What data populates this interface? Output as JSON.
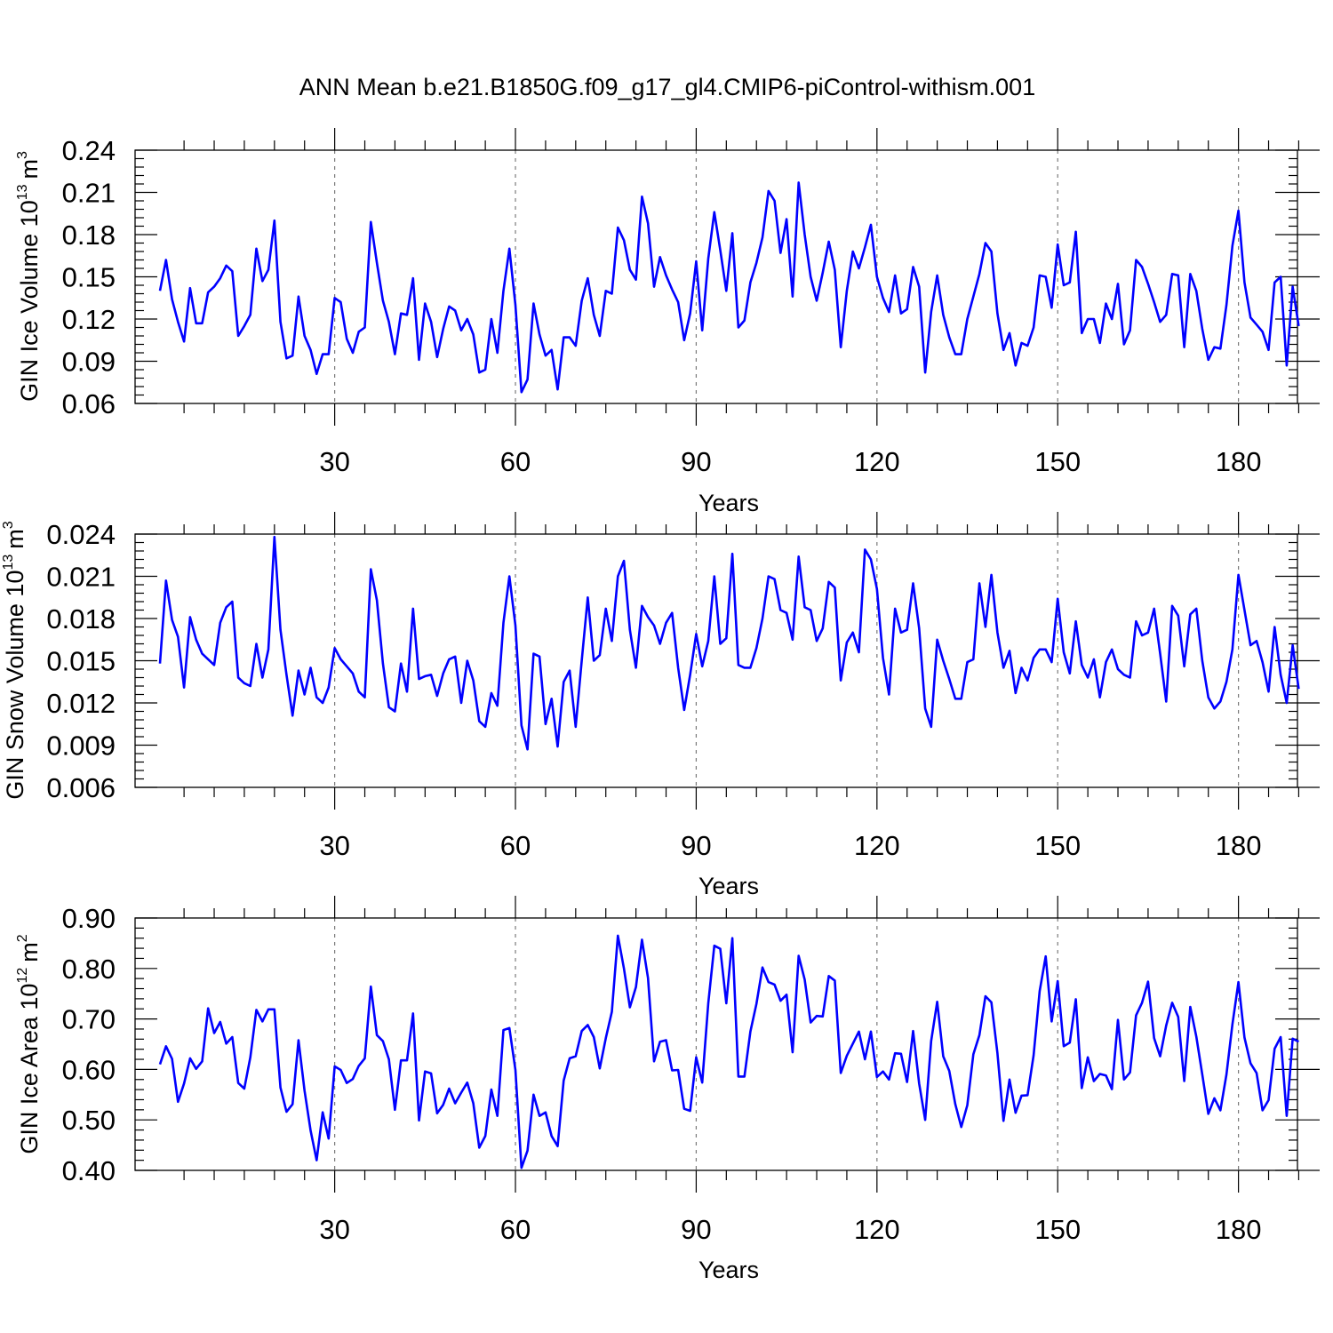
{
  "title": "ANN Mean b.e21.B1850G.f09_g17_gl4.CMIP6-piControl-withism.001",
  "colors": {
    "line": "#0000ff",
    "grid": "#7a7a7a",
    "axes": "#000000"
  },
  "chart_data": [
    {
      "type": "line",
      "ylabel": "GIN Ice Volume",
      "ylabel_unit_base": "10",
      "ylabel_unit_exp": "13",
      "ylabel_unit_var": "m",
      "ylabel_unit_var_exp": "3",
      "xlabel": "Years",
      "xlim": [
        1,
        190
      ],
      "ylim": [
        0.06,
        0.24
      ],
      "yticks": [
        0.06,
        0.09,
        0.12,
        0.15,
        0.18,
        0.21,
        0.24
      ],
      "ytick_labels": [
        "0.06",
        "0.09",
        "0.12",
        "0.15",
        "0.18",
        "0.21",
        "0.24"
      ],
      "xticks": [
        30,
        60,
        90,
        120,
        150,
        180
      ],
      "xtick_labels": [
        "30",
        "60",
        "90",
        "120",
        "150",
        "180"
      ],
      "grid": "vertical dashed at major x ticks",
      "series": [
        {
          "values": [
            0.14,
            0.162,
            0.134,
            0.118,
            0.104,
            0.142,
            0.117,
            0.117,
            0.139,
            0.143,
            0.149,
            0.158,
            0.154,
            0.108,
            0.115,
            0.123,
            0.17,
            0.147,
            0.155,
            0.19,
            0.118,
            0.092,
            0.094,
            0.136,
            0.108,
            0.098,
            0.081,
            0.095,
            0.095,
            0.135,
            0.132,
            0.106,
            0.096,
            0.111,
            0.114,
            0.189,
            0.16,
            0.133,
            0.118,
            0.095,
            0.124,
            0.123,
            0.149,
            0.091,
            0.131,
            0.118,
            0.093,
            0.113,
            0.129,
            0.126,
            0.112,
            0.12,
            0.109,
            0.082,
            0.084,
            0.12,
            0.096,
            0.14,
            0.17,
            0.13,
            0.068,
            0.077,
            0.131,
            0.109,
            0.094,
            0.098,
            0.07,
            0.107,
            0.107,
            0.101,
            0.133,
            0.149,
            0.123,
            0.108,
            0.14,
            0.138,
            0.185,
            0.176,
            0.155,
            0.148,
            0.207,
            0.188,
            0.143,
            0.164,
            0.151,
            0.141,
            0.132,
            0.105,
            0.124,
            0.161,
            0.112,
            0.163,
            0.196,
            0.169,
            0.14,
            0.181,
            0.114,
            0.119,
            0.146,
            0.16,
            0.178,
            0.211,
            0.204,
            0.167,
            0.191,
            0.136,
            0.217,
            0.18,
            0.15,
            0.133,
            0.153,
            0.175,
            0.155,
            0.1,
            0.14,
            0.168,
            0.156,
            0.171,
            0.187,
            0.15,
            0.135,
            0.125,
            0.151,
            0.124,
            0.127,
            0.157,
            0.143,
            0.082,
            0.125,
            0.151,
            0.123,
            0.107,
            0.095,
            0.095,
            0.12,
            0.136,
            0.152,
            0.174,
            0.168,
            0.124,
            0.098,
            0.11,
            0.087,
            0.103,
            0.101,
            0.114,
            0.151,
            0.15,
            0.128,
            0.173,
            0.144,
            0.146,
            0.182,
            0.11,
            0.12,
            0.12,
            0.103,
            0.131,
            0.12,
            0.145,
            0.102,
            0.112,
            0.162,
            0.157,
            0.145,
            0.132,
            0.118,
            0.123,
            0.152,
            0.151,
            0.1,
            0.152,
            0.14,
            0.113,
            0.091,
            0.1,
            0.099,
            0.13,
            0.172,
            0.197,
            0.146,
            0.121,
            0.116,
            0.111,
            0.098,
            0.146,
            0.15,
            0.087,
            0.143,
            0.115
          ]
        }
      ]
    },
    {
      "type": "line",
      "ylabel": "GIN Snow Volume",
      "ylabel_unit_base": "10",
      "ylabel_unit_exp": "13",
      "ylabel_unit_var": "m",
      "ylabel_unit_var_exp": "3",
      "xlabel": "Years",
      "xlim": [
        1,
        190
      ],
      "ylim": [
        0.006,
        0.024
      ],
      "yticks": [
        0.006,
        0.009,
        0.012,
        0.015,
        0.018,
        0.021,
        0.024
      ],
      "ytick_labels": [
        "0.006",
        "0.009",
        "0.012",
        "0.015",
        "0.018",
        "0.021",
        "0.024"
      ],
      "xticks": [
        30,
        60,
        90,
        120,
        150,
        180
      ],
      "xtick_labels": [
        "30",
        "60",
        "90",
        "120",
        "150",
        "180"
      ],
      "grid": "vertical dashed at major x ticks",
      "series": [
        {
          "values": [
            0.0148,
            0.0207,
            0.0179,
            0.0167,
            0.0131,
            0.0181,
            0.0165,
            0.0155,
            0.0151,
            0.0147,
            0.0177,
            0.0188,
            0.0192,
            0.0138,
            0.0134,
            0.0132,
            0.0162,
            0.0138,
            0.0158,
            0.0238,
            0.0172,
            0.014,
            0.0111,
            0.0143,
            0.0126,
            0.0145,
            0.0124,
            0.012,
            0.0131,
            0.0159,
            0.0151,
            0.0146,
            0.0141,
            0.0128,
            0.0124,
            0.0215,
            0.0193,
            0.0148,
            0.0117,
            0.0114,
            0.0148,
            0.0128,
            0.0187,
            0.0137,
            0.0139,
            0.014,
            0.0125,
            0.0141,
            0.0151,
            0.0153,
            0.012,
            0.015,
            0.0136,
            0.0107,
            0.0103,
            0.0127,
            0.0118,
            0.0177,
            0.021,
            0.0175,
            0.0104,
            0.0087,
            0.0155,
            0.0153,
            0.0105,
            0.0123,
            0.0089,
            0.0135,
            0.0143,
            0.0103,
            0.015,
            0.0195,
            0.015,
            0.0154,
            0.0187,
            0.0164,
            0.021,
            0.0221,
            0.0172,
            0.0145,
            0.0189,
            0.0181,
            0.0175,
            0.0162,
            0.0177,
            0.0184,
            0.0145,
            0.0115,
            0.014,
            0.0169,
            0.0146,
            0.0164,
            0.021,
            0.0162,
            0.0166,
            0.0226,
            0.0147,
            0.0145,
            0.0145,
            0.0159,
            0.018,
            0.021,
            0.0208,
            0.0186,
            0.0184,
            0.0165,
            0.0224,
            0.0188,
            0.0186,
            0.0164,
            0.0173,
            0.0206,
            0.0202,
            0.0136,
            0.0163,
            0.017,
            0.0156,
            0.0229,
            0.0222,
            0.0201,
            0.0152,
            0.0126,
            0.0187,
            0.017,
            0.0172,
            0.0205,
            0.0173,
            0.0116,
            0.0103,
            0.0165,
            0.015,
            0.0137,
            0.0123,
            0.0123,
            0.0149,
            0.0151,
            0.0205,
            0.0174,
            0.0211,
            0.017,
            0.0145,
            0.0157,
            0.0127,
            0.0145,
            0.0136,
            0.0152,
            0.0158,
            0.0158,
            0.0149,
            0.0194,
            0.0156,
            0.0141,
            0.0178,
            0.0147,
            0.0138,
            0.0151,
            0.0124,
            0.0149,
            0.0158,
            0.0144,
            0.014,
            0.0138,
            0.0178,
            0.0168,
            0.017,
            0.0187,
            0.0155,
            0.0121,
            0.0189,
            0.0182,
            0.0146,
            0.0183,
            0.0187,
            0.015,
            0.0124,
            0.0116,
            0.0121,
            0.0135,
            0.0158,
            0.0211,
            0.0186,
            0.0161,
            0.0164,
            0.0149,
            0.0128,
            0.0174,
            0.014,
            0.012,
            0.0161,
            0.013
          ]
        }
      ]
    },
    {
      "type": "line",
      "ylabel": "GIN Ice Area",
      "ylabel_unit_base": "10",
      "ylabel_unit_exp": "12",
      "ylabel_unit_var": "m",
      "ylabel_unit_var_exp": "2",
      "xlabel": "Years",
      "xlim": [
        1,
        190
      ],
      "ylim": [
        0.4,
        0.9
      ],
      "yticks": [
        0.4,
        0.5,
        0.6,
        0.7,
        0.8,
        0.9
      ],
      "ytick_labels": [
        "0.40",
        "0.50",
        "0.60",
        "0.70",
        "0.80",
        "0.90"
      ],
      "xticks": [
        30,
        60,
        90,
        120,
        150,
        180
      ],
      "xtick_labels": [
        "30",
        "60",
        "90",
        "120",
        "150",
        "180"
      ],
      "grid": "vertical dashed at major x ticks",
      "series": [
        {
          "values": [
            0.61,
            0.646,
            0.621,
            0.536,
            0.572,
            0.622,
            0.601,
            0.616,
            0.721,
            0.672,
            0.694,
            0.651,
            0.664,
            0.573,
            0.562,
            0.624,
            0.718,
            0.695,
            0.719,
            0.719,
            0.564,
            0.516,
            0.531,
            0.658,
            0.558,
            0.479,
            0.42,
            0.515,
            0.463,
            0.606,
            0.599,
            0.573,
            0.581,
            0.607,
            0.622,
            0.764,
            0.668,
            0.656,
            0.62,
            0.52,
            0.618,
            0.618,
            0.711,
            0.499,
            0.596,
            0.592,
            0.513,
            0.53,
            0.562,
            0.533,
            0.554,
            0.574,
            0.533,
            0.445,
            0.468,
            0.56,
            0.508,
            0.678,
            0.682,
            0.599,
            0.405,
            0.439,
            0.55,
            0.508,
            0.515,
            0.468,
            0.448,
            0.578,
            0.622,
            0.626,
            0.676,
            0.688,
            0.664,
            0.602,
            0.662,
            0.714,
            0.865,
            0.8,
            0.723,
            0.763,
            0.857,
            0.781,
            0.616,
            0.655,
            0.658,
            0.598,
            0.599,
            0.522,
            0.518,
            0.624,
            0.574,
            0.731,
            0.845,
            0.839,
            0.731,
            0.86,
            0.586,
            0.586,
            0.675,
            0.73,
            0.802,
            0.773,
            0.768,
            0.736,
            0.748,
            0.634,
            0.825,
            0.778,
            0.693,
            0.706,
            0.705,
            0.785,
            0.776,
            0.593,
            0.627,
            0.651,
            0.675,
            0.62,
            0.675,
            0.585,
            0.596,
            0.58,
            0.632,
            0.631,
            0.575,
            0.676,
            0.572,
            0.5,
            0.656,
            0.734,
            0.626,
            0.597,
            0.531,
            0.486,
            0.529,
            0.63,
            0.668,
            0.745,
            0.733,
            0.632,
            0.498,
            0.58,
            0.514,
            0.548,
            0.549,
            0.628,
            0.755,
            0.824,
            0.695,
            0.775,
            0.646,
            0.653,
            0.739,
            0.563,
            0.624,
            0.577,
            0.591,
            0.588,
            0.561,
            0.698,
            0.58,
            0.594,
            0.707,
            0.732,
            0.774,
            0.662,
            0.626,
            0.687,
            0.732,
            0.704,
            0.577,
            0.724,
            0.665,
            0.59,
            0.512,
            0.543,
            0.519,
            0.59,
            0.689,
            0.773,
            0.663,
            0.612,
            0.593,
            0.519,
            0.539,
            0.641,
            0.664,
            0.508,
            0.661,
            0.655
          ]
        }
      ]
    }
  ]
}
